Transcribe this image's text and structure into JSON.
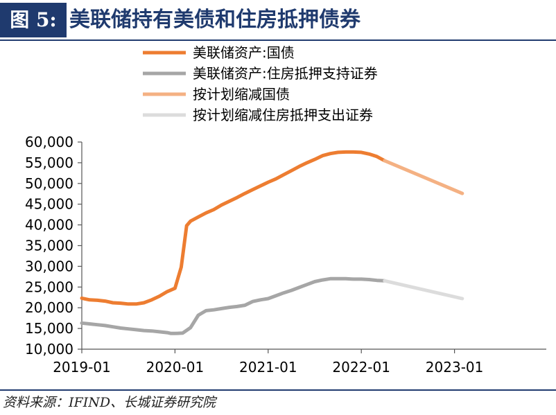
{
  "header": {
    "figure_label": "图 5:",
    "title": "美联储持有美债和住房抵押债券"
  },
  "source": "资料来源：IFIND、长城证券研究院",
  "chart_data": {
    "type": "line",
    "ylim": [
      10000,
      60000
    ],
    "yticks": [
      "60,000",
      "55,000",
      "50,000",
      "45,000",
      "40,000",
      "35,000",
      "30,000",
      "25,000",
      "20,000",
      "15,000",
      "10,000"
    ],
    "ytick_values": [
      60000,
      55000,
      50000,
      45000,
      40000,
      35000,
      30000,
      25000,
      20000,
      15000,
      10000
    ],
    "xticks": [
      "2019-01",
      "2020-01",
      "2021-01",
      "2022-01",
      "2023-01"
    ],
    "xtick_months": [
      0,
      12,
      24,
      36,
      48
    ],
    "xlim_months": [
      0,
      60
    ],
    "legend_position": "top",
    "series": [
      {
        "name": "美联储资产:国债",
        "color": "#ed7d31",
        "width": 5,
        "points": [
          [
            0,
            22300
          ],
          [
            1,
            21900
          ],
          [
            2,
            21800
          ],
          [
            3,
            21600
          ],
          [
            4,
            21200
          ],
          [
            5,
            21100
          ],
          [
            6,
            20900
          ],
          [
            7,
            20900
          ],
          [
            8,
            21200
          ],
          [
            9,
            21900
          ],
          [
            10,
            22800
          ],
          [
            11,
            23900
          ],
          [
            12,
            24700
          ],
          [
            12.8,
            29800
          ],
          [
            13.5,
            39800
          ],
          [
            14,
            40900
          ],
          [
            15,
            41900
          ],
          [
            16,
            42900
          ],
          [
            17,
            43700
          ],
          [
            18,
            44800
          ],
          [
            19,
            45700
          ],
          [
            20,
            46600
          ],
          [
            21,
            47600
          ],
          [
            22,
            48500
          ],
          [
            23,
            49400
          ],
          [
            24,
            50300
          ],
          [
            25,
            51100
          ],
          [
            26,
            52100
          ],
          [
            27,
            53100
          ],
          [
            28,
            54100
          ],
          [
            29,
            55000
          ],
          [
            30,
            55800
          ],
          [
            31,
            56700
          ],
          [
            32,
            57200
          ],
          [
            33,
            57500
          ],
          [
            34,
            57600
          ],
          [
            35,
            57600
          ],
          [
            36,
            57500
          ],
          [
            37,
            57100
          ],
          [
            38,
            56500
          ],
          [
            39,
            55500
          ]
        ]
      },
      {
        "name": "美联储资产:住房抵押支持证券",
        "color": "#a6a6a6",
        "width": 5,
        "points": [
          [
            0,
            16300
          ],
          [
            1,
            16100
          ],
          [
            2,
            15900
          ],
          [
            3,
            15700
          ],
          [
            4,
            15400
          ],
          [
            5,
            15100
          ],
          [
            6,
            14900
          ],
          [
            7,
            14700
          ],
          [
            8,
            14500
          ],
          [
            9,
            14400
          ],
          [
            10,
            14200
          ],
          [
            11,
            14000
          ],
          [
            11.5,
            13800
          ],
          [
            12,
            13800
          ],
          [
            13,
            13900
          ],
          [
            14,
            15200
          ],
          [
            15,
            18200
          ],
          [
            16,
            19300
          ],
          [
            17,
            19500
          ],
          [
            18,
            19800
          ],
          [
            19,
            20100
          ],
          [
            20,
            20300
          ],
          [
            21,
            20600
          ],
          [
            22,
            21500
          ],
          [
            23,
            21900
          ],
          [
            24,
            22200
          ],
          [
            25,
            22900
          ],
          [
            26,
            23600
          ],
          [
            27,
            24200
          ],
          [
            28,
            24900
          ],
          [
            29,
            25600
          ],
          [
            30,
            26300
          ],
          [
            31,
            26700
          ],
          [
            32,
            27000
          ],
          [
            33,
            27000
          ],
          [
            34,
            27000
          ],
          [
            35,
            26900
          ],
          [
            36,
            26900
          ],
          [
            37,
            26800
          ],
          [
            38,
            26600
          ],
          [
            39,
            26500
          ]
        ]
      },
      {
        "name": "按计划缩减国债",
        "color": "#f4b183",
        "width": 5,
        "points": [
          [
            39,
            55500
          ],
          [
            49,
            47600
          ]
        ]
      },
      {
        "name": "按计划缩减住房抵押支出证券",
        "color": "#dcdcdc",
        "width": 5,
        "points": [
          [
            39,
            26500
          ],
          [
            49,
            22200
          ]
        ]
      }
    ]
  }
}
